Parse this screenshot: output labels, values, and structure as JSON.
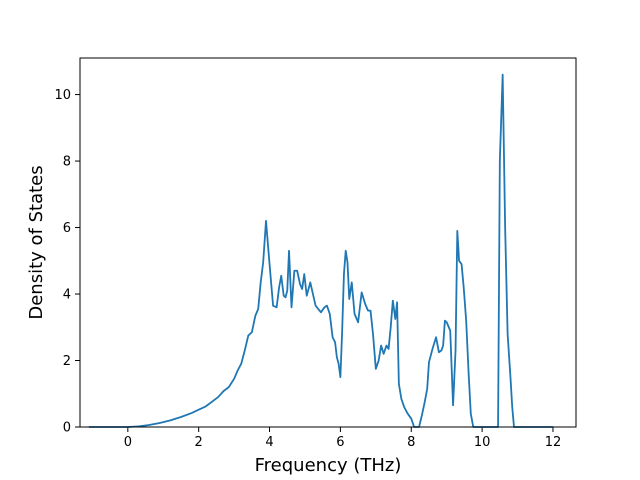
{
  "chart_data": {
    "type": "line",
    "title": "",
    "xlabel": "Frequency (THz)",
    "ylabel": "Density of States",
    "xlim": [
      -1.35,
      12.65
    ],
    "ylim": [
      0,
      11.1
    ],
    "xticks": [
      0,
      2,
      4,
      6,
      8,
      10,
      12
    ],
    "yticks": [
      0,
      2,
      4,
      6,
      8,
      10
    ],
    "grid": false,
    "color": "#1f77b4",
    "series": [
      {
        "x": [
          -1.1,
          -0.5,
          0.0,
          0.3,
          0.6,
          0.9,
          1.2,
          1.5,
          1.8,
          2.0,
          2.2,
          2.4,
          2.55,
          2.7,
          2.85,
          3.0,
          3.1,
          3.2,
          3.3,
          3.4,
          3.5,
          3.6,
          3.68,
          3.75,
          3.82,
          3.9,
          4.0,
          4.1,
          4.2,
          4.27,
          4.33,
          4.4,
          4.45,
          4.5,
          4.55,
          4.62,
          4.7,
          4.78,
          4.86,
          4.92,
          4.98,
          5.05,
          5.15,
          5.3,
          5.45,
          5.55,
          5.62,
          5.7,
          5.78,
          5.85,
          5.9,
          5.95,
          6.0,
          6.05,
          6.1,
          6.15,
          6.2,
          6.25,
          6.32,
          6.4,
          6.5,
          6.6,
          6.7,
          6.78,
          6.85,
          6.92,
          7.0,
          7.08,
          7.15,
          7.22,
          7.3,
          7.36,
          7.42,
          7.48,
          7.55,
          7.6,
          7.65,
          7.72,
          7.8,
          7.9,
          8.0,
          8.08,
          8.15,
          8.22,
          8.3,
          8.38,
          8.45,
          8.5,
          8.6,
          8.7,
          8.78,
          8.85,
          8.9,
          8.95,
          9.0,
          9.1,
          9.18,
          9.25,
          9.3,
          9.35,
          9.42,
          9.48,
          9.55,
          9.62,
          9.68,
          9.75,
          9.8,
          9.85,
          9.9,
          10.0,
          10.2,
          10.45,
          10.5,
          10.58,
          10.65,
          10.72,
          10.8,
          10.85,
          10.9,
          10.95,
          11.0,
          11.5,
          12.0
        ],
        "values": [
          0.0,
          0.0,
          0.0,
          0.02,
          0.06,
          0.12,
          0.2,
          0.3,
          0.42,
          0.52,
          0.62,
          0.78,
          0.9,
          1.08,
          1.2,
          1.45,
          1.7,
          1.9,
          2.3,
          2.75,
          2.85,
          3.35,
          3.55,
          4.35,
          4.95,
          6.2,
          4.9,
          3.65,
          3.6,
          4.2,
          4.55,
          3.95,
          3.9,
          4.1,
          5.3,
          3.6,
          4.7,
          4.7,
          4.3,
          4.15,
          4.6,
          3.95,
          4.35,
          3.65,
          3.45,
          3.6,
          3.65,
          3.4,
          2.7,
          2.55,
          2.1,
          1.9,
          1.5,
          2.9,
          4.6,
          5.3,
          4.95,
          3.85,
          4.35,
          3.4,
          3.15,
          4.05,
          3.7,
          3.5,
          3.5,
          2.8,
          1.75,
          2.0,
          2.45,
          2.2,
          2.45,
          2.35,
          3.0,
          3.8,
          3.25,
          3.75,
          1.3,
          0.85,
          0.6,
          0.4,
          0.25,
          0.0,
          0.0,
          0.0,
          0.35,
          0.75,
          1.15,
          1.95,
          2.35,
          2.7,
          2.25,
          2.3,
          2.45,
          3.2,
          3.15,
          2.9,
          0.65,
          2.3,
          5.9,
          5.0,
          4.9,
          4.2,
          3.2,
          1.6,
          0.4,
          0.0,
          0.0,
          0.0,
          0.0,
          0.0,
          0.0,
          0.0,
          8.0,
          10.6,
          6.0,
          2.8,
          1.5,
          0.6,
          0.0,
          0.0,
          0.0,
          0.0,
          0.0
        ]
      }
    ]
  }
}
